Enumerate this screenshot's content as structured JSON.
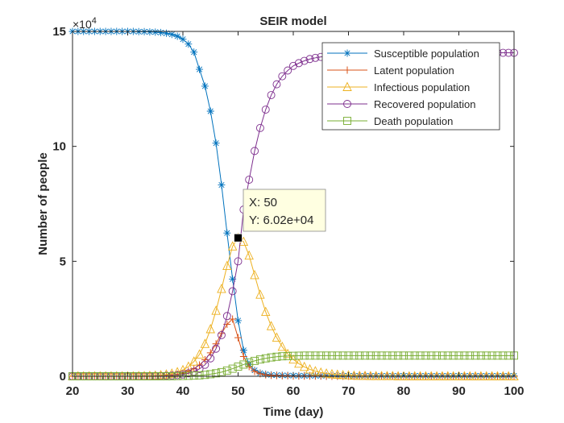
{
  "chart_data": {
    "type": "line",
    "title": "SEIR model",
    "xlabel": "Time (day)",
    "ylabel": "Number of people",
    "y_exponent_label": "×10",
    "y_exponent_power": "4",
    "xlim": [
      20,
      100
    ],
    "ylim": [
      0,
      15
    ],
    "y_unit_multiplier": 10000,
    "xticks": [
      20,
      30,
      40,
      50,
      60,
      70,
      80,
      90,
      100
    ],
    "yticks": [
      0,
      5,
      10,
      15
    ],
    "grid": false,
    "legend_position": "top-right",
    "x": [
      20,
      21,
      22,
      23,
      24,
      25,
      26,
      27,
      28,
      29,
      30,
      31,
      32,
      33,
      34,
      35,
      36,
      37,
      38,
      39,
      40,
      41,
      42,
      43,
      44,
      45,
      46,
      47,
      48,
      49,
      50,
      51,
      52,
      53,
      54,
      55,
      56,
      57,
      58,
      59,
      60,
      61,
      62,
      63,
      64,
      65,
      66,
      67,
      68,
      69,
      70,
      71,
      72,
      73,
      74,
      75,
      76,
      77,
      78,
      79,
      80,
      81,
      82,
      83,
      84,
      85,
      86,
      87,
      88,
      89,
      90,
      91,
      92,
      93,
      94,
      95,
      96,
      97,
      98,
      99,
      100
    ],
    "series": [
      {
        "name": "Susceptible population",
        "color": "#0072BD",
        "marker": "star",
        "values": [
          15,
          15,
          15,
          15,
          15,
          15,
          15,
          15,
          15,
          15,
          15,
          15,
          14.99,
          14.99,
          14.98,
          14.97,
          14.95,
          14.92,
          14.87,
          14.79,
          14.66,
          14.45,
          14.1,
          13.35,
          12.62,
          11.53,
          10.14,
          8.32,
          6.23,
          4.23,
          2.42,
          1.13,
          0.52,
          0.26,
          0.14,
          0.09,
          0.06,
          0.05,
          0.04,
          0.035,
          0.03,
          0.028,
          0.026,
          0.025,
          0.024,
          0.023,
          0.022,
          0.022,
          0.021,
          0.021,
          0.02,
          0.02,
          0.02,
          0.02,
          0.02,
          0.02,
          0.02,
          0.02,
          0.02,
          0.02,
          0.02,
          0.02,
          0.02,
          0.02,
          0.02,
          0.02,
          0.02,
          0.02,
          0.02,
          0.02,
          0.02,
          0.02,
          0.02,
          0.02,
          0.02,
          0.02,
          0.02,
          0.02,
          0.02,
          0.02,
          0.02
        ]
      },
      {
        "name": "Latent population",
        "color": "#D95319",
        "marker": "plus",
        "values": [
          0,
          0,
          0,
          0,
          0,
          0,
          0,
          0,
          0,
          0,
          0,
          0,
          0.005,
          0.01,
          0.012,
          0.018,
          0.025,
          0.04,
          0.06,
          0.09,
          0.14,
          0.22,
          0.33,
          0.49,
          0.72,
          1.02,
          1.41,
          1.86,
          2.26,
          2.49,
          1.68,
          0.86,
          0.42,
          0.21,
          0.11,
          0.06,
          0.04,
          0.03,
          0.02,
          0.02,
          0.01,
          0.01,
          0.01,
          0.01,
          0.01,
          0.01,
          0,
          0,
          0,
          0,
          0,
          0,
          0,
          0,
          0,
          0,
          0,
          0,
          0,
          0,
          0,
          0,
          0,
          0,
          0,
          0,
          0,
          0,
          0,
          0,
          0,
          0,
          0,
          0,
          0,
          0,
          0,
          0,
          0,
          0,
          0
        ]
      },
      {
        "name": "Infectious population",
        "color": "#EDB120",
        "marker": "triangle",
        "values": [
          0,
          0,
          0,
          0,
          0,
          0,
          0,
          0,
          0,
          0,
          0,
          0,
          0.01,
          0.01,
          0.02,
          0.03,
          0.05,
          0.08,
          0.12,
          0.18,
          0.27,
          0.42,
          0.64,
          0.95,
          1.41,
          2.05,
          2.85,
          3.8,
          4.8,
          5.65,
          6.02,
          5.85,
          5.25,
          4.4,
          3.55,
          2.8,
          2.18,
          1.68,
          1.28,
          0.97,
          0.73,
          0.55,
          0.41,
          0.3,
          0.22,
          0.16,
          0.12,
          0.09,
          0.07,
          0.05,
          0.04,
          0.03,
          0.02,
          0.02,
          0.01,
          0.01,
          0.01,
          0.01,
          0.01,
          0,
          0,
          0,
          0,
          0,
          0,
          0,
          0,
          0,
          0,
          0,
          0,
          0,
          0,
          0,
          0,
          0,
          0,
          0,
          0,
          0,
          0
        ]
      },
      {
        "name": "Recovered population",
        "color": "#7E2F8E",
        "marker": "circle",
        "values": [
          0,
          0,
          0,
          0,
          0,
          0,
          0,
          0,
          0,
          0,
          0,
          0,
          0,
          0,
          0,
          0.01,
          0.01,
          0.02,
          0.03,
          0.05,
          0.08,
          0.13,
          0.2,
          0.32,
          0.5,
          0.78,
          1.2,
          1.79,
          2.62,
          3.7,
          5.0,
          7.25,
          8.55,
          9.8,
          10.8,
          11.6,
          12.23,
          12.7,
          13.05,
          13.3,
          13.5,
          13.62,
          13.72,
          13.8,
          13.85,
          13.89,
          13.92,
          13.95,
          13.97,
          13.99,
          14.0,
          14.01,
          14.02,
          14.03,
          14.04,
          14.04,
          14.05,
          14.05,
          14.05,
          14.06,
          14.06,
          14.06,
          14.06,
          14.06,
          14.06,
          14.07,
          14.07,
          14.07,
          14.07,
          14.07,
          14.07,
          14.07,
          14.07,
          14.07,
          14.07,
          14.07,
          14.07,
          14.07,
          14.07,
          14.07,
          14.07
        ]
      },
      {
        "name": "Death population",
        "color": "#77AC30",
        "marker": "square",
        "values": [
          0,
          0,
          0,
          0,
          0,
          0,
          0,
          0,
          0,
          0,
          0,
          0,
          0,
          0,
          0,
          0,
          0,
          0,
          0.005,
          0.01,
          0.015,
          0.02,
          0.03,
          0.04,
          0.06,
          0.09,
          0.13,
          0.18,
          0.25,
          0.33,
          0.42,
          0.51,
          0.6,
          0.67,
          0.73,
          0.78,
          0.82,
          0.85,
          0.87,
          0.88,
          0.89,
          0.895,
          0.9,
          0.9,
          0.9,
          0.9,
          0.9,
          0.9,
          0.9,
          0.9,
          0.9,
          0.9,
          0.9,
          0.9,
          0.9,
          0.9,
          0.9,
          0.9,
          0.9,
          0.9,
          0.9,
          0.9,
          0.9,
          0.9,
          0.9,
          0.9,
          0.9,
          0.9,
          0.9,
          0.9,
          0.9,
          0.9,
          0.9,
          0.9,
          0.9,
          0.9,
          0.9,
          0.9,
          0.9,
          0.9,
          0.9
        ]
      }
    ],
    "datatip": {
      "x": 50,
      "y": 6.02,
      "x_text": "X: 50",
      "y_text": "Y: 6.02e+04"
    }
  }
}
